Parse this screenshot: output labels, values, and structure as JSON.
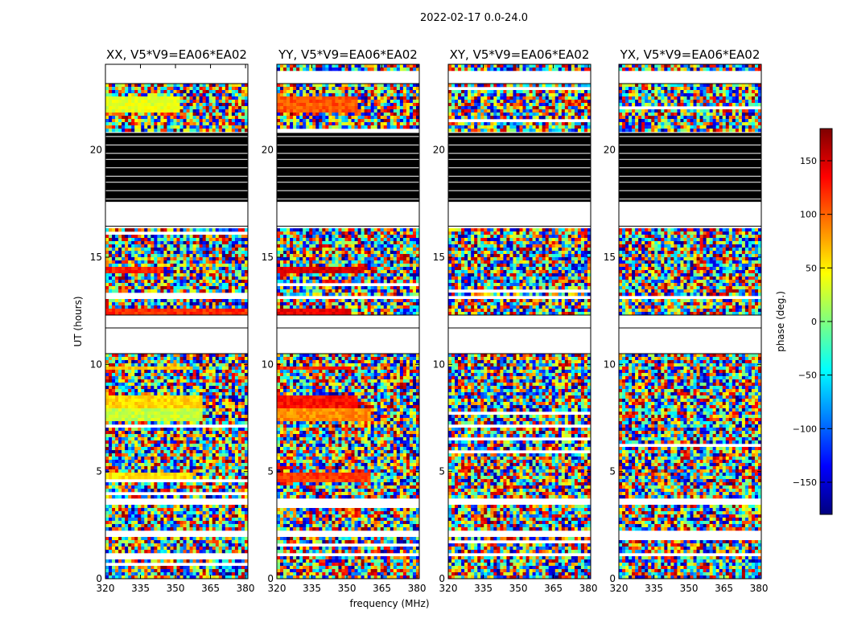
{
  "suptitle": "2022-02-17 0.0-24.0",
  "chart_data": {
    "type": "heatmap",
    "xlabel": "frequency (MHz)",
    "ylabel": "UT (hours)",
    "xlim": [
      320,
      381
    ],
    "ylim": [
      0,
      24
    ],
    "xticks": [
      320,
      335,
      350,
      365,
      380
    ],
    "yticks": [
      0,
      5,
      10,
      15,
      20
    ],
    "colorbar": {
      "label": "phase (deg.)",
      "range": [
        -180,
        180
      ],
      "ticks": [
        -150,
        -100,
        -50,
        0,
        50,
        100,
        150
      ],
      "colormap": "jet",
      "colors": [
        "#00007f",
        "#0000ff",
        "#007fff",
        "#00ffff",
        "#7fff7f",
        "#ffff00",
        "#ff7f00",
        "#ff0000",
        "#7f0000"
      ]
    },
    "panels": [
      {
        "title": "XX, V5*V9=EA06*EA02",
        "pol": "XX"
      },
      {
        "title": "YY, V5*V9=EA06*EA02",
        "pol": "YY"
      },
      {
        "title": "XY, V5*V9=EA06*EA02",
        "pol": "XY"
      },
      {
        "title": "YX, V5*V9=EA06*EA02",
        "pol": "YX"
      }
    ],
    "blank_bands_hours": [
      [
        23.1,
        23.7
      ],
      [
        21.4,
        21.5
      ],
      [
        16.4,
        17.6
      ],
      [
        13.0,
        13.2
      ],
      [
        11.7,
        12.3
      ],
      [
        10.5,
        11.7
      ],
      [
        3.5,
        3.8
      ],
      [
        1.9,
        2.2
      ],
      [
        1.0,
        1.15
      ]
    ],
    "flagged_black_band_hours": [
      17.6,
      20.8
    ],
    "coherent_phase_segments": [
      {
        "pol": "XX",
        "t0": 7.4,
        "t1": 7.9,
        "f0": 320,
        "f1": 362,
        "phase_deg": 25
      },
      {
        "pol": "XX",
        "t0": 8.0,
        "t1": 8.6,
        "f0": 320,
        "f1": 362,
        "phase_deg": 60
      },
      {
        "pol": "XX",
        "t0": 4.5,
        "t1": 5.0,
        "f0": 320,
        "f1": 357,
        "phase_deg": 55
      },
      {
        "pol": "XX",
        "t0": 9.7,
        "t1": 9.9,
        "f0": 320,
        "f1": 357,
        "phase_deg": 65
      },
      {
        "pol": "XX",
        "t0": 12.3,
        "t1": 12.6,
        "f0": 320,
        "f1": 381,
        "phase_deg": 120
      },
      {
        "pol": "XX",
        "t0": 14.3,
        "t1": 14.5,
        "f0": 320,
        "f1": 345,
        "phase_deg": 125
      },
      {
        "pol": "XX",
        "t0": 21.8,
        "t1": 22.5,
        "f0": 320,
        "f1": 352,
        "phase_deg": 35
      },
      {
        "pol": "YY",
        "t0": 7.4,
        "t1": 7.9,
        "f0": 320,
        "f1": 360,
        "phase_deg": 85
      },
      {
        "pol": "YY",
        "t0": 8.0,
        "t1": 8.6,
        "f0": 320,
        "f1": 355,
        "phase_deg": 130
      },
      {
        "pol": "YY",
        "t0": 4.5,
        "t1": 5.0,
        "f0": 320,
        "f1": 360,
        "phase_deg": 115
      },
      {
        "pol": "YY",
        "t0": 9.7,
        "t1": 9.9,
        "f0": 320,
        "f1": 352,
        "phase_deg": 120
      },
      {
        "pol": "YY",
        "t0": 12.3,
        "t1": 12.6,
        "f0": 320,
        "f1": 352,
        "phase_deg": 140
      },
      {
        "pol": "YY",
        "t0": 14.3,
        "t1": 14.5,
        "f0": 320,
        "f1": 358,
        "phase_deg": 150
      },
      {
        "pol": "YY",
        "t0": 21.8,
        "t1": 22.5,
        "f0": 320,
        "f1": 355,
        "phase_deg": 105
      }
    ]
  }
}
